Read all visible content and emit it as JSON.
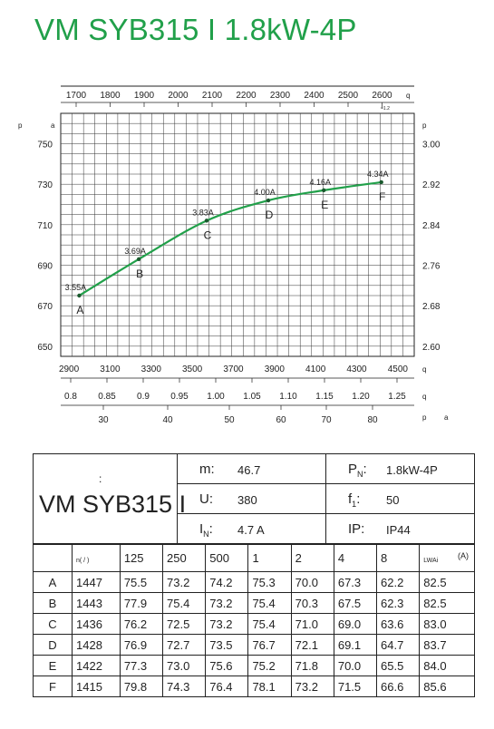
{
  "title": "VM SYB315 I 1.8kW-4P",
  "chart_data": {
    "type": "line",
    "top_axis": {
      "label": "q",
      "ticks": [
        1700,
        1800,
        1900,
        2000,
        2100,
        2200,
        2300,
        2400,
        2500,
        2600
      ],
      "note": "=1.2"
    },
    "left_axis": {
      "label": "p",
      "unit": "a",
      "ticks": [
        650,
        670,
        690,
        710,
        730,
        750
      ],
      "ylim": [
        645,
        765
      ]
    },
    "right_axis": {
      "label": "p",
      "ticks": [
        "2.60",
        "2.68",
        "2.76",
        "2.84",
        "2.92",
        "3.00"
      ]
    },
    "bottom_axis_1": {
      "label": "q",
      "ticks": [
        2900,
        3100,
        3300,
        3500,
        3700,
        3900,
        4100,
        4300,
        4500
      ],
      "xlim": [
        2860,
        4580
      ]
    },
    "bottom_axis_2": {
      "label": "q",
      "ticks": [
        "0.8",
        "0.85",
        "0.9",
        "0.95",
        "1.00",
        "1.05",
        "1.10",
        "1.15",
        "1.20",
        "1.25"
      ]
    },
    "bottom_axis_3": {
      "label": "p",
      "unit": "a",
      "ticks": [
        30,
        40,
        50,
        60,
        70,
        80
      ]
    },
    "points": [
      {
        "name": "A",
        "current": "3.55A",
        "x": 2950,
        "y": 675
      },
      {
        "name": "B",
        "current": "3.69A",
        "x": 3240,
        "y": 693
      },
      {
        "name": "C",
        "current": "3.83A",
        "x": 3570,
        "y": 712
      },
      {
        "name": "D",
        "current": "4.00A",
        "x": 3870,
        "y": 722
      },
      {
        "name": "E",
        "current": "4.16A",
        "x": 4140,
        "y": 727
      },
      {
        "name": "F",
        "current": "4.34A",
        "x": 4420,
        "y": 731
      }
    ],
    "line_color": "#21a04a",
    "grid": true
  },
  "specs": {
    "model": "VM SYB315 I",
    "colon": ":",
    "m_key": "m:",
    "m_val": "46.7",
    "u_key": "U:",
    "u_val": "380",
    "i_key": "I",
    "i_sub": "N",
    "i_colon": ":",
    "i_val": "4.7 A",
    "p_key": "P",
    "p_sub": "N",
    "p_colon": ":",
    "p_val": "1.8kW-4P",
    "f_key": "f",
    "f_sub": "1",
    "f_colon": ":",
    "f_val": "50",
    "ip_key": "IP:",
    "ip_val": "IP44"
  },
  "table": {
    "header_n": "n( / )",
    "headers": [
      "125",
      "250",
      "500",
      "1",
      "2",
      "4",
      "8"
    ],
    "lwa": "LWAi",
    "lwa_unit": "(A)",
    "rows": [
      {
        "label": "A",
        "cells": [
          "1447",
          "75.5",
          "73.2",
          "74.2",
          "75.3",
          "70.0",
          "67.3",
          "62.2",
          "82.5"
        ]
      },
      {
        "label": "B",
        "cells": [
          "1443",
          "77.9",
          "75.4",
          "73.2",
          "75.4",
          "70.3",
          "67.5",
          "62.3",
          "82.5"
        ]
      },
      {
        "label": "C",
        "cells": [
          "1436",
          "76.2",
          "72.5",
          "73.2",
          "75.4",
          "71.0",
          "69.0",
          "63.6",
          "83.0"
        ]
      },
      {
        "label": "D",
        "cells": [
          "1428",
          "76.9",
          "72.7",
          "73.5",
          "76.7",
          "72.1",
          "69.1",
          "64.7",
          "83.7"
        ]
      },
      {
        "label": "E",
        "cells": [
          "1422",
          "77.3",
          "73.0",
          "75.6",
          "75.2",
          "71.8",
          "70.0",
          "65.5",
          "84.0"
        ]
      },
      {
        "label": "F",
        "cells": [
          "1415",
          "79.8",
          "74.3",
          "76.4",
          "78.1",
          "73.2",
          "71.5",
          "66.6",
          "85.6"
        ]
      }
    ]
  }
}
